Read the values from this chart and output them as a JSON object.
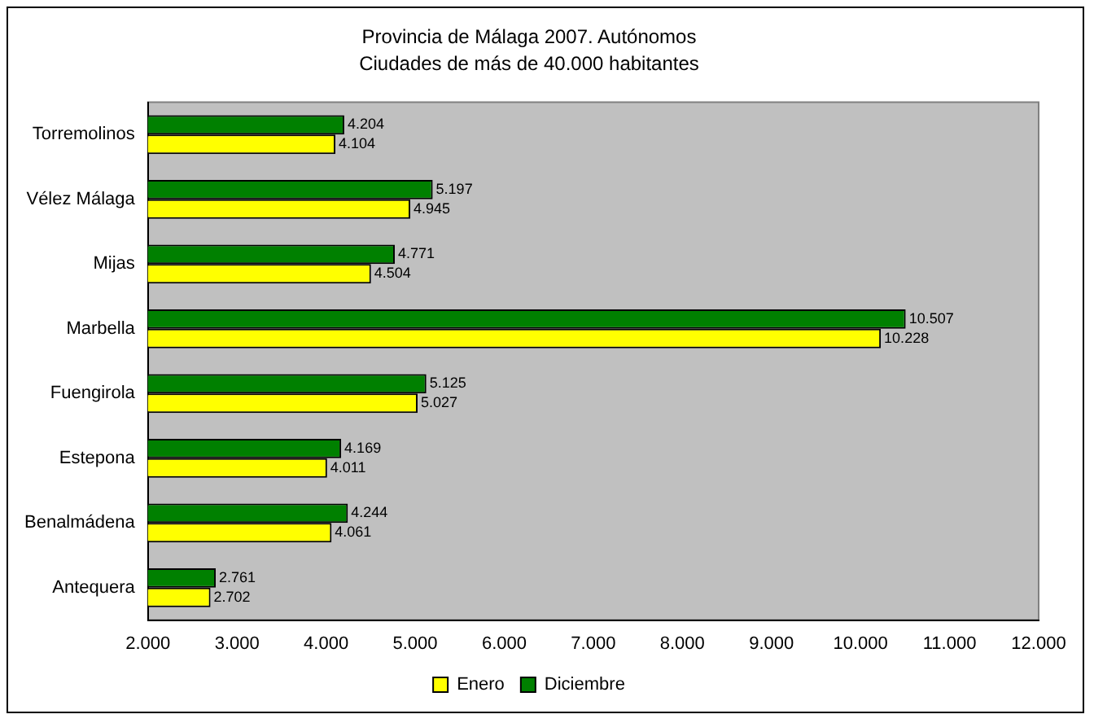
{
  "chart_data": {
    "type": "bar",
    "orientation": "horizontal",
    "title": "Provincia de Málaga 2007. Autónomos",
    "subtitle": "Ciudades de más de 40.000 habitantes",
    "categories": [
      "Torremolinos",
      "Vélez Málaga",
      "Mijas",
      "Marbella",
      "Fuengirola",
      "Estepona",
      "Benalmádena",
      "Antequera"
    ],
    "series": [
      {
        "name": "Enero",
        "color": "#ffff00",
        "values": [
          4104,
          4945,
          4504,
          10228,
          5027,
          4011,
          4061,
          2702
        ],
        "value_labels": [
          "4.104",
          "4.945",
          "4.504",
          "10.228",
          "5.027",
          "4.011",
          "4.061",
          "2.702"
        ]
      },
      {
        "name": "Diciembre",
        "color": "#008000",
        "values": [
          4204,
          5197,
          4771,
          10507,
          5125,
          4169,
          4244,
          2761
        ],
        "value_labels": [
          "4.204",
          "5.197",
          "4.771",
          "10.507",
          "5.125",
          "4.169",
          "4.244",
          "2.761"
        ]
      }
    ],
    "xlim": [
      2000,
      12000
    ],
    "xticks": [
      {
        "value": 2000,
        "label": "2.000"
      },
      {
        "value": 3000,
        "label": "3.000"
      },
      {
        "value": 4000,
        "label": "4.000"
      },
      {
        "value": 5000,
        "label": "5.000"
      },
      {
        "value": 6000,
        "label": "6.000"
      },
      {
        "value": 7000,
        "label": "7.000"
      },
      {
        "value": 8000,
        "label": "8.000"
      },
      {
        "value": 9000,
        "label": "9.000"
      },
      {
        "value": 10000,
        "label": "10.000"
      },
      {
        "value": 11000,
        "label": "11.000"
      },
      {
        "value": 12000,
        "label": "12.000"
      }
    ],
    "grid": false,
    "legend": "bottom"
  }
}
